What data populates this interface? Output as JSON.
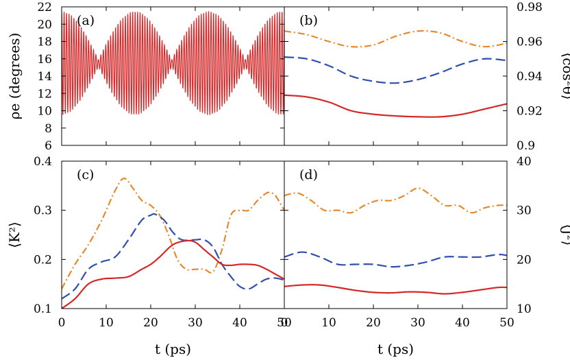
{
  "colors": {
    "red": "#d62728",
    "blue": "#2f4fb0",
    "orange": "#e5892b",
    "frame": "#000000"
  },
  "chart_data": [
    {
      "id": "a",
      "type": "line",
      "panel_label": "(a)",
      "ylabel": "ρe (degrees)",
      "xlim": [
        0,
        50
      ],
      "ylim": [
        6,
        22
      ],
      "yticks": [
        "6",
        "8",
        "10",
        "12",
        "14",
        "16",
        "18",
        "20",
        "22"
      ],
      "xticks": [],
      "oscillation": {
        "center_deg": 15.5,
        "period_ps": 0.55,
        "beat_period_ps": 16.5,
        "max_amplitude_deg": 6.0,
        "min_amplitude_deg": 0.4
      },
      "series": [
        {
          "color": "red",
          "dash": "solid"
        }
      ]
    },
    {
      "id": "b",
      "type": "line",
      "panel_label": "(b)",
      "ylabel": "⟨cos²θ⟩",
      "ylabel_side": "right",
      "xlim": [
        0,
        50
      ],
      "ylim": [
        0.9,
        0.98
      ],
      "yticks": [
        "0.9",
        "0.92",
        "0.94",
        "0.96",
        "0.98"
      ],
      "xticks": [],
      "series": [
        {
          "color": "orange",
          "dash": "dashdot",
          "x": [
            0,
            5,
            10,
            15,
            20,
            25,
            30,
            35,
            40,
            45,
            50
          ],
          "y": [
            0.966,
            0.964,
            0.96,
            0.957,
            0.958,
            0.963,
            0.966,
            0.965,
            0.96,
            0.957,
            0.959
          ]
        },
        {
          "color": "blue",
          "dash": "dashed",
          "x": [
            0,
            5,
            10,
            15,
            20,
            25,
            30,
            35,
            40,
            45,
            50
          ],
          "y": [
            0.951,
            0.95,
            0.946,
            0.94,
            0.937,
            0.936,
            0.938,
            0.942,
            0.947,
            0.95,
            0.949
          ]
        },
        {
          "color": "red",
          "dash": "solid",
          "x": [
            0,
            5,
            10,
            15,
            20,
            25,
            30,
            35,
            40,
            45,
            50
          ],
          "y": [
            0.929,
            0.928,
            0.925,
            0.92,
            0.918,
            0.917,
            0.9165,
            0.9165,
            0.918,
            0.921,
            0.924
          ]
        }
      ]
    },
    {
      "id": "c",
      "type": "line",
      "panel_label": "(c)",
      "ylabel": "⟨K²⟩",
      "xlabel": "t (ps)",
      "xlim": [
        0,
        50
      ],
      "ylim": [
        0.1,
        0.4
      ],
      "yticks": [
        "0.1",
        "0.2",
        "0.3",
        "0.4"
      ],
      "xticks": [
        "0",
        "10",
        "20",
        "30",
        "40",
        "50"
      ],
      "series": [
        {
          "color": "orange",
          "dash": "dashdot",
          "x": [
            0,
            3,
            6,
            9,
            12,
            14,
            16,
            18,
            20,
            22,
            24,
            26,
            28,
            30,
            32,
            34,
            36,
            38,
            40,
            42,
            44,
            46,
            47,
            48,
            50
          ],
          "y": [
            0.14,
            0.19,
            0.23,
            0.28,
            0.34,
            0.365,
            0.345,
            0.32,
            0.31,
            0.29,
            0.25,
            0.2,
            0.18,
            0.18,
            0.18,
            0.175,
            0.22,
            0.29,
            0.3,
            0.3,
            0.32,
            0.335,
            0.335,
            0.33,
            0.3
          ]
        },
        {
          "color": "blue",
          "dash": "dashed",
          "x": [
            0,
            3,
            6,
            9,
            12,
            15,
            18,
            20,
            21,
            23,
            25,
            27,
            30,
            32,
            34,
            36,
            38,
            40,
            42,
            44,
            46,
            48,
            50
          ],
          "y": [
            0.12,
            0.14,
            0.18,
            0.195,
            0.205,
            0.24,
            0.28,
            0.29,
            0.292,
            0.28,
            0.255,
            0.24,
            0.24,
            0.24,
            0.225,
            0.19,
            0.165,
            0.145,
            0.14,
            0.15,
            0.16,
            0.162,
            0.158
          ]
        },
        {
          "color": "red",
          "dash": "solid",
          "x": [
            0,
            3,
            6,
            9,
            12,
            15,
            18,
            20,
            22,
            25,
            28,
            30,
            32,
            34,
            36,
            38,
            40,
            42,
            44,
            46,
            48,
            50
          ],
          "y": [
            0.1,
            0.12,
            0.15,
            0.16,
            0.162,
            0.165,
            0.18,
            0.19,
            0.205,
            0.23,
            0.238,
            0.235,
            0.22,
            0.205,
            0.19,
            0.188,
            0.19,
            0.19,
            0.188,
            0.18,
            0.17,
            0.16
          ]
        }
      ]
    },
    {
      "id": "d",
      "type": "line",
      "panel_label": "(d)",
      "ylabel": "⟨J²⟩",
      "ylabel_side": "right",
      "xlabel": "t (ps)",
      "xlim": [
        0,
        50
      ],
      "ylim": [
        10,
        40
      ],
      "yticks": [
        "10",
        "20",
        "30",
        "40"
      ],
      "xticks": [
        "0",
        "10",
        "20",
        "30",
        "40",
        "50"
      ],
      "series": [
        {
          "color": "orange",
          "dash": "dashdot",
          "x": [
            0,
            3,
            6,
            9,
            12,
            15,
            18,
            21,
            24,
            27,
            30,
            33,
            36,
            39,
            42,
            45,
            48,
            50
          ],
          "y": [
            33,
            33.5,
            32,
            30,
            30,
            29.5,
            31,
            32,
            32,
            33,
            34.5,
            33,
            31,
            31,
            29.5,
            30.5,
            31,
            31
          ]
        },
        {
          "color": "blue",
          "dash": "dashed",
          "x": [
            0,
            4,
            8,
            12,
            16,
            20,
            24,
            28,
            32,
            36,
            40,
            44,
            48,
            50
          ],
          "y": [
            20.5,
            21.5,
            20.5,
            19,
            19,
            19,
            18.5,
            18.8,
            19.5,
            20.5,
            20.5,
            20.5,
            21,
            20.8
          ]
        },
        {
          "color": "red",
          "dash": "solid",
          "x": [
            0,
            4,
            8,
            12,
            16,
            20,
            24,
            28,
            32,
            36,
            40,
            44,
            48,
            50
          ],
          "y": [
            14.5,
            14.8,
            14.8,
            14.3,
            13.7,
            13.3,
            13.2,
            13.4,
            13.3,
            13.0,
            13.3,
            13.8,
            14.3,
            14.3
          ]
        }
      ]
    }
  ]
}
